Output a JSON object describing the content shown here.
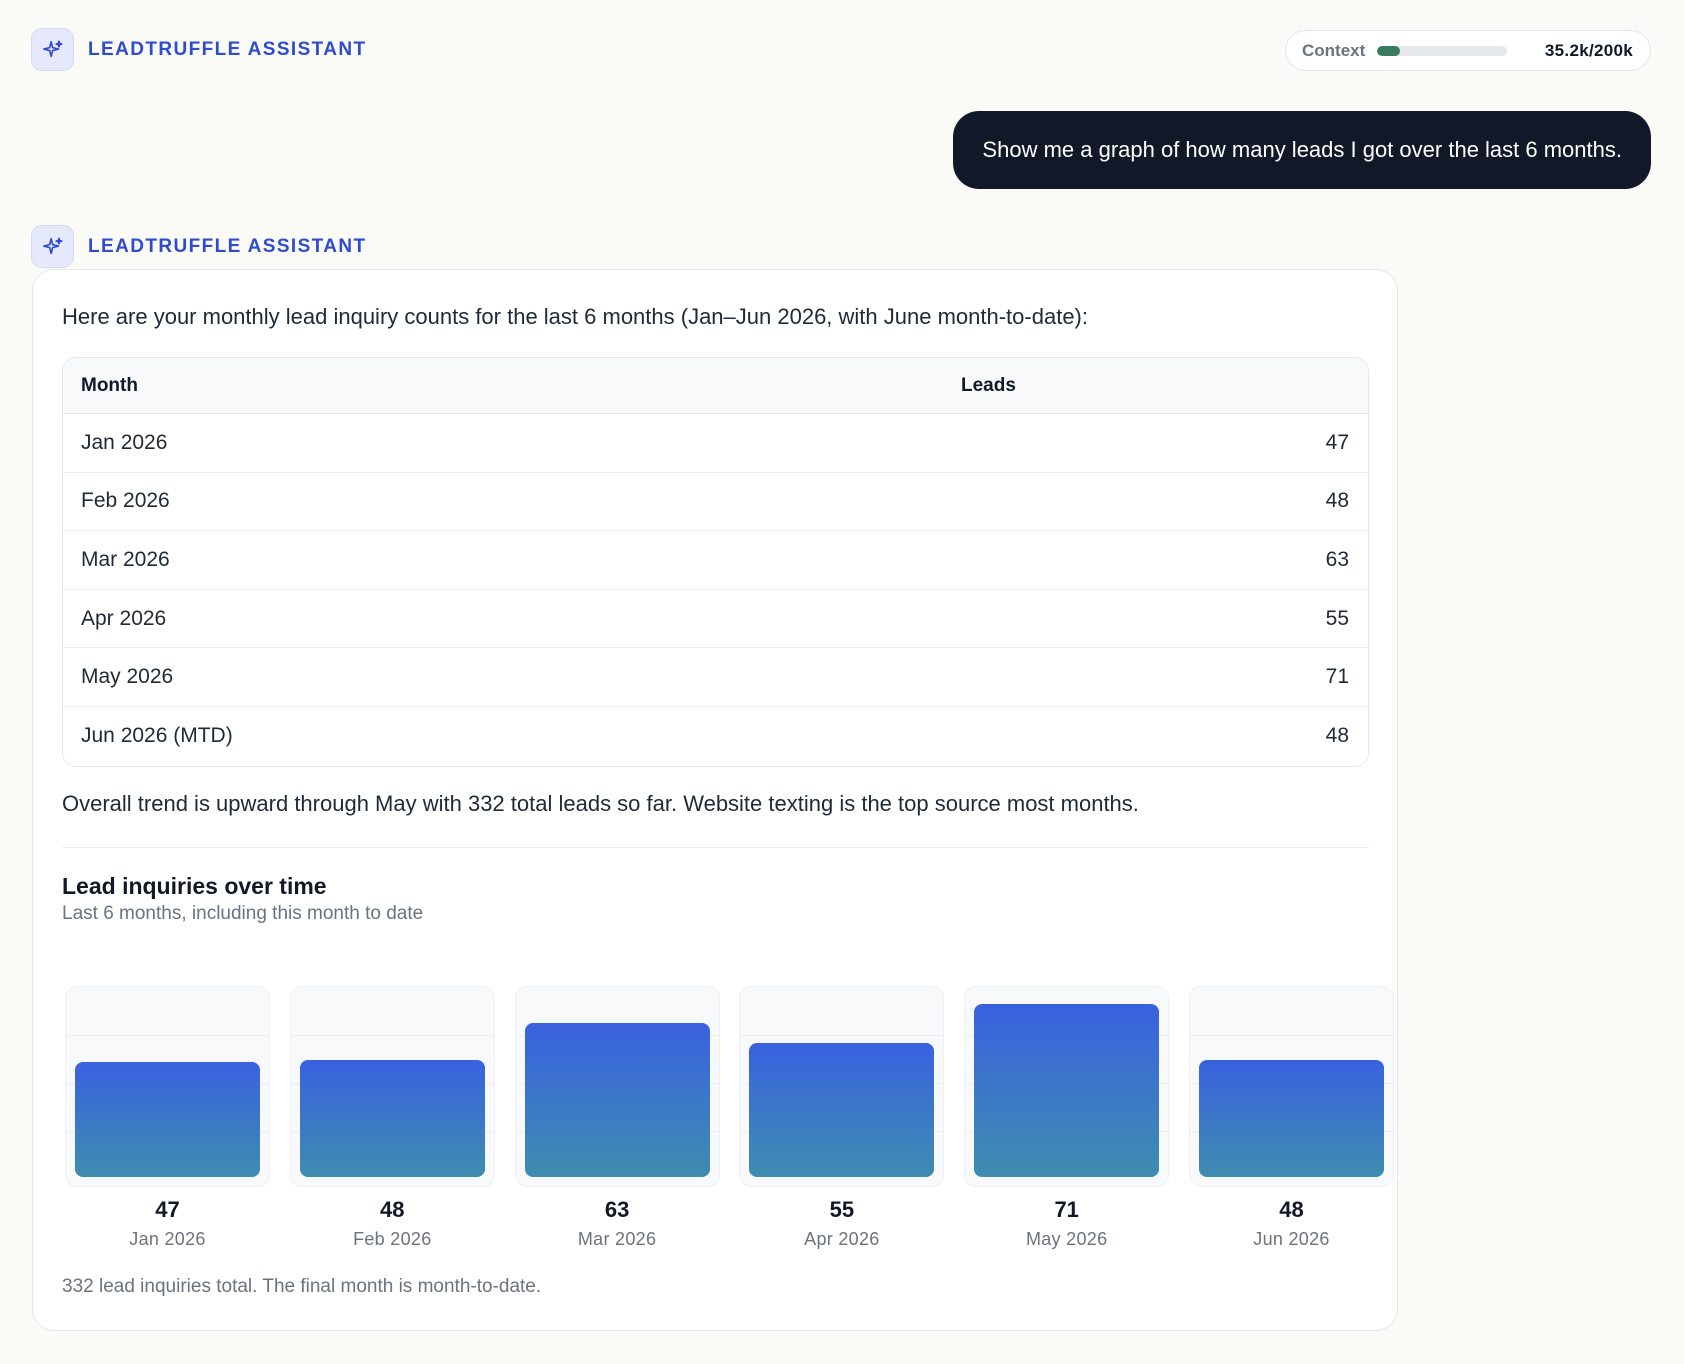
{
  "assistant": {
    "name": "LEADTRUFFLE ASSISTANT"
  },
  "context": {
    "label": "Context",
    "value": "35.2k/200k",
    "fraction": 0.176,
    "bar_color": "#3a7a5e"
  },
  "user_message": "Show me a graph of how many leads I got over the last 6 months.",
  "response": {
    "intro": "Here are your monthly lead inquiry counts for the last 6 months (Jan–Jun 2026, with June month-to-date):",
    "table": {
      "headers": [
        "Month",
        "Leads"
      ],
      "rows": [
        [
          "Jan 2026",
          "47"
        ],
        [
          "Feb 2026",
          "48"
        ],
        [
          "Mar 2026",
          "63"
        ],
        [
          "Apr 2026",
          "55"
        ],
        [
          "May 2026",
          "71"
        ],
        [
          "Jun 2026 (MTD)",
          "48"
        ]
      ]
    },
    "summary": "Overall trend is upward through May with 332 total leads so far. Website texting is the top source most months.",
    "footnote": "332 lead inquiries total. The final month is month-to-date."
  },
  "colors": {
    "accent": "#2f4bd0",
    "bar_top": "#3a61e0",
    "bar_bottom": "#3e8db0"
  },
  "chart_data": {
    "type": "bar",
    "title": "Lead inquiries over time",
    "subtitle": "Last 6 months, including this month to date",
    "categories": [
      "Jan 2026",
      "Feb 2026",
      "Mar 2026",
      "Apr 2026",
      "May 2026",
      "Jun 2026"
    ],
    "values": [
      47,
      48,
      63,
      55,
      71,
      48
    ],
    "ylim": [
      0,
      75
    ],
    "grid": true
  }
}
